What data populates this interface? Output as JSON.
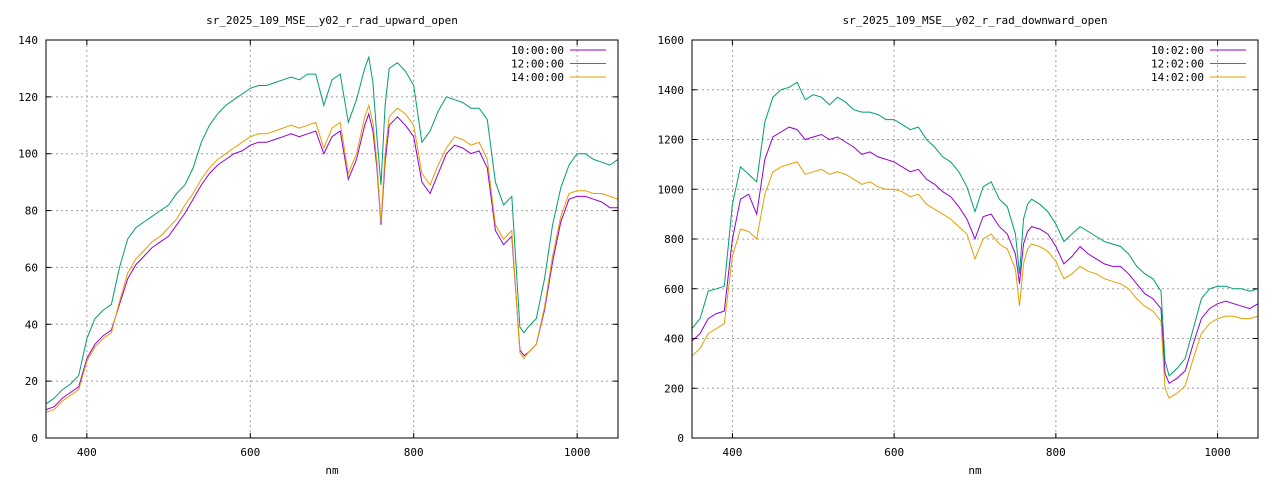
{
  "chart_data": [
    {
      "type": "line",
      "title": "sr_2025_109_MSE__y02_r_rad_upward_open",
      "xlabel": "nm",
      "ylabel": "",
      "xlim": [
        350,
        1050
      ],
      "ylim": [
        0,
        140
      ],
      "xticks": [
        400,
        600,
        800,
        1000
      ],
      "yticks": [
        0,
        20,
        40,
        60,
        80,
        100,
        120,
        140
      ],
      "grid": true,
      "legend": "top-right",
      "series": [
        {
          "name": "10:00:00",
          "color": "#9400d3",
          "x": [
            350,
            360,
            370,
            380,
            390,
            400,
            410,
            420,
            430,
            440,
            450,
            460,
            470,
            480,
            490,
            500,
            510,
            520,
            530,
            540,
            550,
            560,
            570,
            580,
            590,
            600,
            610,
            620,
            630,
            640,
            650,
            660,
            670,
            680,
            690,
            700,
            710,
            720,
            730,
            740,
            745,
            750,
            755,
            760,
            765,
            770,
            780,
            790,
            800,
            810,
            820,
            830,
            840,
            850,
            860,
            870,
            880,
            890,
            900,
            910,
            920,
            930,
            935,
            940,
            950,
            960,
            970,
            980,
            990,
            1000,
            1010,
            1020,
            1030,
            1040,
            1050
          ],
          "y": [
            10,
            11,
            14,
            16,
            18,
            28,
            33,
            36,
            38,
            47,
            56,
            61,
            64,
            67,
            69,
            71,
            75,
            79,
            84,
            89,
            93,
            96,
            98,
            100,
            101,
            103,
            104,
            104,
            105,
            106,
            107,
            106,
            107,
            108,
            100,
            106,
            108,
            91,
            98,
            110,
            114,
            108,
            95,
            75,
            97,
            110,
            113,
            110,
            106,
            90,
            86,
            93,
            100,
            103,
            102,
            100,
            101,
            95,
            73,
            68,
            71,
            31,
            29,
            30,
            33,
            45,
            62,
            76,
            84,
            85,
            85,
            84,
            83,
            81,
            81
          ]
        },
        {
          "name": "12:00:00",
          "color": "#009e73",
          "x": [
            350,
            360,
            370,
            380,
            390,
            400,
            410,
            420,
            430,
            440,
            450,
            460,
            470,
            480,
            490,
            500,
            510,
            520,
            530,
            540,
            550,
            560,
            570,
            580,
            590,
            600,
            610,
            620,
            630,
            640,
            650,
            660,
            670,
            680,
            690,
            700,
            710,
            720,
            730,
            740,
            745,
            750,
            755,
            760,
            765,
            770,
            780,
            790,
            800,
            810,
            820,
            830,
            840,
            850,
            860,
            870,
            880,
            890,
            900,
            910,
            920,
            930,
            935,
            940,
            950,
            960,
            970,
            980,
            990,
            1000,
            1010,
            1020,
            1030,
            1040,
            1050
          ],
          "y": [
            12,
            14,
            17,
            19,
            22,
            35,
            42,
            45,
            47,
            60,
            70,
            74,
            76,
            78,
            80,
            82,
            86,
            89,
            95,
            104,
            110,
            114,
            117,
            119,
            121,
            123,
            124,
            124,
            125,
            126,
            127,
            126,
            128,
            128,
            117,
            126,
            128,
            111,
            119,
            130,
            134,
            125,
            106,
            89,
            117,
            130,
            132,
            129,
            124,
            104,
            108,
            115,
            120,
            119,
            118,
            116,
            116,
            112,
            90,
            82,
            85,
            39,
            37,
            39,
            42,
            56,
            75,
            88,
            96,
            100,
            100,
            98,
            97,
            96,
            98
          ]
        },
        {
          "name": "14:00:00",
          "color": "#e69f00",
          "x": [
            350,
            360,
            370,
            380,
            390,
            400,
            410,
            420,
            430,
            440,
            450,
            460,
            470,
            480,
            490,
            500,
            510,
            520,
            530,
            540,
            550,
            560,
            570,
            580,
            590,
            600,
            610,
            620,
            630,
            640,
            650,
            660,
            670,
            680,
            690,
            700,
            710,
            720,
            730,
            740,
            745,
            750,
            755,
            760,
            765,
            770,
            780,
            790,
            800,
            810,
            820,
            830,
            840,
            850,
            860,
            870,
            880,
            890,
            900,
            910,
            920,
            930,
            935,
            940,
            950,
            960,
            970,
            980,
            990,
            1000,
            1010,
            1020,
            1030,
            1040,
            1050
          ],
          "y": [
            9,
            10,
            13,
            15,
            17,
            27,
            32,
            35,
            37,
            48,
            58,
            63,
            66,
            69,
            71,
            74,
            77,
            82,
            86,
            91,
            95,
            98,
            100,
            102,
            104,
            106,
            107,
            107,
            108,
            109,
            110,
            109,
            110,
            111,
            102,
            109,
            111,
            93,
            100,
            113,
            117,
            111,
            97,
            76,
            100,
            113,
            116,
            114,
            110,
            93,
            89,
            96,
            102,
            106,
            105,
            103,
            104,
            98,
            75,
            70,
            73,
            30,
            28,
            30,
            33,
            46,
            64,
            78,
            86,
            87,
            87,
            86,
            86,
            85,
            84
          ]
        }
      ]
    },
    {
      "type": "line",
      "title": "sr_2025_109_MSE__y02_r_rad_downward_open",
      "xlabel": "nm",
      "ylabel": "",
      "xlim": [
        350,
        1050
      ],
      "ylim": [
        0,
        1600
      ],
      "xticks": [
        400,
        600,
        800,
        1000
      ],
      "yticks": [
        0,
        200,
        400,
        600,
        800,
        1000,
        1200,
        1400,
        1600
      ],
      "grid": true,
      "legend": "top-right",
      "series": [
        {
          "name": "10:02:00",
          "color": "#9400d3",
          "x": [
            350,
            360,
            370,
            380,
            390,
            400,
            410,
            420,
            430,
            440,
            450,
            460,
            470,
            480,
            490,
            500,
            510,
            520,
            530,
            540,
            550,
            560,
            570,
            580,
            590,
            600,
            610,
            620,
            630,
            640,
            650,
            660,
            670,
            680,
            690,
            700,
            710,
            720,
            730,
            740,
            750,
            755,
            760,
            765,
            770,
            780,
            790,
            800,
            810,
            820,
            830,
            840,
            850,
            860,
            870,
            880,
            890,
            900,
            910,
            920,
            930,
            935,
            940,
            950,
            960,
            970,
            980,
            990,
            1000,
            1010,
            1020,
            1030,
            1040,
            1050
          ],
          "y": [
            390,
            420,
            480,
            500,
            510,
            800,
            960,
            980,
            900,
            1120,
            1210,
            1230,
            1250,
            1240,
            1200,
            1210,
            1220,
            1200,
            1210,
            1190,
            1170,
            1140,
            1150,
            1130,
            1120,
            1110,
            1090,
            1070,
            1080,
            1040,
            1020,
            990,
            970,
            930,
            880,
            800,
            890,
            900,
            850,
            820,
            740,
            620,
            780,
            830,
            850,
            840,
            820,
            770,
            700,
            730,
            770,
            740,
            720,
            700,
            690,
            690,
            660,
            620,
            580,
            560,
            520,
            260,
            220,
            240,
            270,
            380,
            480,
            520,
            540,
            550,
            540,
            530,
            520,
            540
          ]
        },
        {
          "name": "12:02:00",
          "color": "#009e73",
          "x": [
            350,
            360,
            370,
            380,
            390,
            400,
            410,
            420,
            430,
            440,
            450,
            460,
            470,
            480,
            490,
            500,
            510,
            520,
            530,
            540,
            550,
            560,
            570,
            580,
            590,
            600,
            610,
            620,
            630,
            640,
            650,
            660,
            670,
            680,
            690,
            700,
            710,
            720,
            730,
            740,
            750,
            755,
            760,
            765,
            770,
            780,
            790,
            800,
            810,
            820,
            830,
            840,
            850,
            860,
            870,
            880,
            890,
            900,
            910,
            920,
            930,
            935,
            940,
            950,
            960,
            970,
            980,
            990,
            1000,
            1010,
            1020,
            1030,
            1040,
            1050
          ],
          "y": [
            440,
            480,
            590,
            600,
            610,
            940,
            1090,
            1060,
            1030,
            1270,
            1370,
            1400,
            1410,
            1430,
            1360,
            1380,
            1370,
            1340,
            1370,
            1350,
            1320,
            1310,
            1310,
            1300,
            1280,
            1280,
            1260,
            1240,
            1250,
            1200,
            1170,
            1130,
            1110,
            1070,
            1010,
            910,
            1010,
            1030,
            960,
            930,
            820,
            660,
            880,
            940,
            960,
            940,
            910,
            860,
            790,
            820,
            850,
            830,
            810,
            790,
            780,
            770,
            740,
            690,
            660,
            640,
            590,
            310,
            250,
            280,
            320,
            440,
            560,
            600,
            610,
            610,
            600,
            600,
            590,
            600
          ]
        },
        {
          "name": "14:02:00",
          "color": "#e69f00",
          "x": [
            350,
            360,
            370,
            380,
            390,
            400,
            410,
            420,
            430,
            440,
            450,
            460,
            470,
            480,
            490,
            500,
            510,
            520,
            530,
            540,
            550,
            560,
            570,
            580,
            590,
            600,
            610,
            620,
            630,
            640,
            650,
            660,
            670,
            680,
            690,
            700,
            710,
            720,
            730,
            740,
            750,
            755,
            760,
            765,
            770,
            780,
            790,
            800,
            810,
            820,
            830,
            840,
            850,
            860,
            870,
            880,
            890,
            900,
            910,
            920,
            930,
            935,
            940,
            950,
            960,
            970,
            980,
            990,
            1000,
            1010,
            1020,
            1030,
            1040,
            1050
          ],
          "y": [
            330,
            360,
            420,
            440,
            460,
            730,
            840,
            830,
            800,
            980,
            1070,
            1090,
            1100,
            1110,
            1060,
            1070,
            1080,
            1060,
            1070,
            1060,
            1040,
            1020,
            1030,
            1010,
            1000,
            1000,
            990,
            970,
            980,
            940,
            920,
            900,
            880,
            850,
            820,
            720,
            800,
            820,
            780,
            760,
            680,
            530,
            700,
            760,
            780,
            770,
            750,
            710,
            640,
            660,
            690,
            670,
            660,
            640,
            630,
            620,
            600,
            560,
            530,
            510,
            470,
            200,
            160,
            180,
            210,
            320,
            420,
            460,
            480,
            490,
            490,
            480,
            480,
            490
          ]
        }
      ]
    }
  ]
}
